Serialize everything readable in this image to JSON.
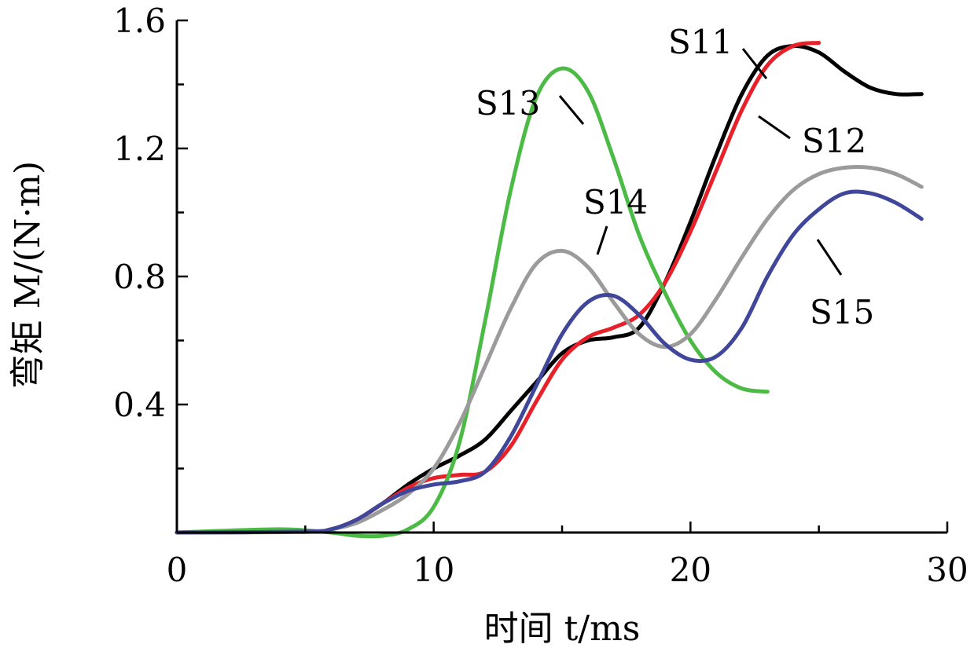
{
  "chart_data": {
    "type": "line",
    "xlabel": "时间 t/ms",
    "ylabel": "弯矩 M/(N·m)",
    "xlim": [
      0,
      30
    ],
    "ylim": [
      0,
      1.6
    ],
    "x_ticks": [
      0,
      10,
      20,
      30
    ],
    "x_tick_labels": [
      "0",
      "10",
      "20",
      "30"
    ],
    "y_ticks": [
      0.4,
      0.8,
      1.2,
      1.6
    ],
    "y_tick_labels": [
      "0.4",
      "0.8",
      "1.2",
      "1.6"
    ],
    "grid": false,
    "legend": "inline labels",
    "series": [
      {
        "name": "S11",
        "color": "#000000",
        "points": [
          [
            0,
            0
          ],
          [
            5,
            0.003
          ],
          [
            6,
            0.01
          ],
          [
            7,
            0.04
          ],
          [
            8,
            0.09
          ],
          [
            9,
            0.15
          ],
          [
            10,
            0.2
          ],
          [
            11,
            0.24
          ],
          [
            12,
            0.29
          ],
          [
            13,
            0.38
          ],
          [
            14,
            0.47
          ],
          [
            15,
            0.56
          ],
          [
            16,
            0.6
          ],
          [
            17,
            0.61
          ],
          [
            18,
            0.64
          ],
          [
            19,
            0.78
          ],
          [
            20,
            0.97
          ],
          [
            21,
            1.18
          ],
          [
            22,
            1.37
          ],
          [
            23,
            1.49
          ],
          [
            24,
            1.52
          ],
          [
            25,
            1.5
          ],
          [
            26,
            1.44
          ],
          [
            27,
            1.39
          ],
          [
            28,
            1.37
          ],
          [
            29,
            1.37
          ]
        ]
      },
      {
        "name": "S12",
        "color": "#e8202a",
        "points": [
          [
            0,
            0
          ],
          [
            5,
            0.003
          ],
          [
            6,
            0.01
          ],
          [
            7,
            0.04
          ],
          [
            8,
            0.09
          ],
          [
            9,
            0.14
          ],
          [
            10,
            0.17
          ],
          [
            11,
            0.18
          ],
          [
            12,
            0.19
          ],
          [
            13,
            0.27
          ],
          [
            14,
            0.41
          ],
          [
            15,
            0.54
          ],
          [
            16,
            0.61
          ],
          [
            17,
            0.64
          ],
          [
            18,
            0.68
          ],
          [
            19,
            0.78
          ],
          [
            20,
            0.94
          ],
          [
            21,
            1.13
          ],
          [
            22,
            1.32
          ],
          [
            23,
            1.46
          ],
          [
            24,
            1.52
          ],
          [
            25,
            1.53
          ]
        ]
      },
      {
        "name": "S13",
        "color": "#4cbb45",
        "points": [
          [
            0,
            0
          ],
          [
            4,
            0.01
          ],
          [
            6,
            0.0
          ],
          [
            7,
            -0.01
          ],
          [
            8,
            -0.01
          ],
          [
            9,
            0.01
          ],
          [
            10,
            0.08
          ],
          [
            11,
            0.28
          ],
          [
            12,
            0.66
          ],
          [
            13,
            1.07
          ],
          [
            14,
            1.36
          ],
          [
            15,
            1.45
          ],
          [
            16,
            1.38
          ],
          [
            17,
            1.17
          ],
          [
            18,
            0.93
          ],
          [
            19,
            0.75
          ],
          [
            20,
            0.6
          ],
          [
            21,
            0.5
          ],
          [
            22,
            0.45
          ],
          [
            23,
            0.44
          ]
        ]
      },
      {
        "name": "S14",
        "color": "#9b9b9b",
        "points": [
          [
            0,
            0
          ],
          [
            5,
            0.002
          ],
          [
            6,
            0.01
          ],
          [
            7,
            0.03
          ],
          [
            8,
            0.07
          ],
          [
            9,
            0.12
          ],
          [
            10,
            0.2
          ],
          [
            11,
            0.34
          ],
          [
            12,
            0.52
          ],
          [
            13,
            0.7
          ],
          [
            14,
            0.84
          ],
          [
            15,
            0.88
          ],
          [
            16,
            0.83
          ],
          [
            17,
            0.72
          ],
          [
            18,
            0.62
          ],
          [
            19,
            0.58
          ],
          [
            20,
            0.62
          ],
          [
            21,
            0.73
          ],
          [
            22,
            0.86
          ],
          [
            23,
            0.98
          ],
          [
            24,
            1.07
          ],
          [
            25,
            1.12
          ],
          [
            26,
            1.14
          ],
          [
            27,
            1.14
          ],
          [
            28,
            1.12
          ],
          [
            29,
            1.08
          ]
        ]
      },
      {
        "name": "S15",
        "color": "#40479a",
        "points": [
          [
            0,
            0
          ],
          [
            5,
            0.003
          ],
          [
            6,
            0.01
          ],
          [
            7,
            0.04
          ],
          [
            8,
            0.09
          ],
          [
            9,
            0.13
          ],
          [
            10,
            0.15
          ],
          [
            11,
            0.16
          ],
          [
            12,
            0.19
          ],
          [
            13,
            0.3
          ],
          [
            14,
            0.46
          ],
          [
            15,
            0.62
          ],
          [
            16,
            0.72
          ],
          [
            17,
            0.74
          ],
          [
            18,
            0.68
          ],
          [
            19,
            0.59
          ],
          [
            20,
            0.54
          ],
          [
            21,
            0.55
          ],
          [
            22,
            0.64
          ],
          [
            23,
            0.8
          ],
          [
            24,
            0.93
          ],
          [
            25,
            1.01
          ],
          [
            26,
            1.06
          ],
          [
            27,
            1.06
          ],
          [
            28,
            1.03
          ],
          [
            29,
            0.98
          ]
        ]
      }
    ],
    "annotations": [
      "S11",
      "S12",
      "S13",
      "S14",
      "S15"
    ]
  }
}
